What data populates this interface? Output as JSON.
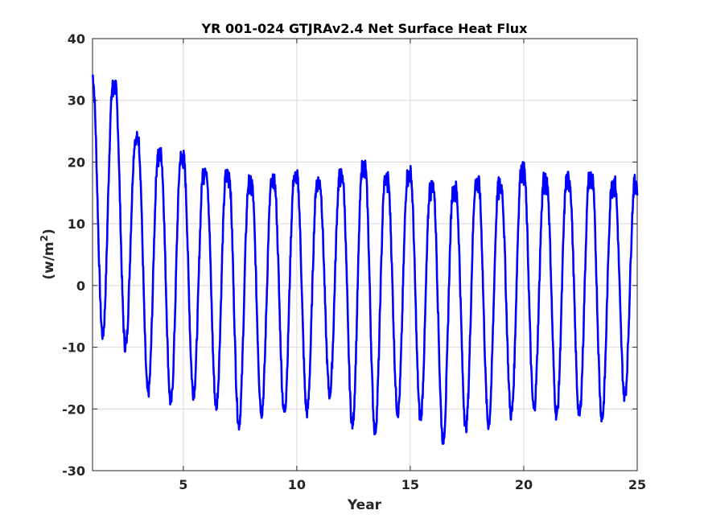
{
  "chart_data": {
    "type": "line",
    "title": "YR 001-024 GTJRAv2.4 Net Surface Heat Flux",
    "xlabel": "Year",
    "ylabel_main": "(w/m",
    "ylabel_sup": "2",
    "ylabel_close": ")",
    "xlim": [
      1,
      25
    ],
    "ylim": [
      -30,
      40
    ],
    "xticks": [
      5,
      10,
      15,
      20,
      25
    ],
    "xtick_labels": [
      "5",
      "10",
      "15",
      "20",
      "25"
    ],
    "yticks": [
      -30,
      -20,
      -10,
      0,
      10,
      20,
      30,
      40
    ],
    "ytick_labels": [
      "-30",
      "-20",
      "-10",
      "0",
      "10",
      "20",
      "30",
      "40"
    ],
    "grid": true,
    "line_color": "#0000ff",
    "series": [
      {
        "maxima": [
          34,
          32.5,
          24,
          21.5,
          21,
          19,
          18.5,
          17,
          17,
          18,
          17,
          18,
          19.5,
          17.5,
          18.5,
          16.5,
          16,
          17,
          16.5,
          19,
          17.5,
          17.5,
          18,
          17
        ],
        "minima": [
          -8,
          -10,
          -17.5,
          -19,
          -17.5,
          -19.5,
          -22.5,
          -20.5,
          -20.5,
          -20.5,
          -17.5,
          -22.5,
          -23.5,
          -20.5,
          -21.5,
          -25,
          -23,
          -22.5,
          -21,
          -20,
          -21,
          -21,
          -21.5,
          -18
        ]
      }
    ]
  }
}
